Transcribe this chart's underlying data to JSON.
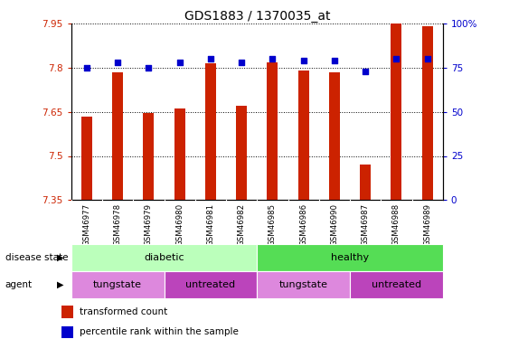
{
  "title": "GDS1883 / 1370035_at",
  "samples": [
    "GSM46977",
    "GSM46978",
    "GSM46979",
    "GSM46980",
    "GSM46981",
    "GSM46982",
    "GSM46985",
    "GSM46986",
    "GSM46990",
    "GSM46987",
    "GSM46988",
    "GSM46989"
  ],
  "bar_values": [
    7.635,
    7.785,
    7.645,
    7.66,
    7.815,
    7.67,
    7.818,
    7.79,
    7.785,
    7.47,
    7.95,
    7.94
  ],
  "dot_values": [
    75,
    78,
    75,
    78,
    80,
    78,
    80,
    79,
    79,
    73,
    80,
    80
  ],
  "ylim_left": [
    7.35,
    7.95
  ],
  "ylim_right": [
    0,
    100
  ],
  "yticks_left": [
    7.35,
    7.5,
    7.65,
    7.8,
    7.95
  ],
  "yticks_right": [
    0,
    25,
    50,
    75,
    100
  ],
  "ytick_labels_left": [
    "7.35",
    "7.5",
    "7.65",
    "7.8",
    "7.95"
  ],
  "ytick_labels_right": [
    "0",
    "25",
    "50",
    "75",
    "100%"
  ],
  "bar_color": "#CC2200",
  "dot_color": "#0000CC",
  "disease_state_labels": [
    {
      "label": "diabetic",
      "start": 0,
      "end": 6,
      "color": "#BBFFBB"
    },
    {
      "label": "healthy",
      "start": 6,
      "end": 12,
      "color": "#55DD55"
    }
  ],
  "agent_labels": [
    {
      "label": "tungstate",
      "start": 0,
      "end": 3,
      "color": "#DD88DD"
    },
    {
      "label": "untreated",
      "start": 3,
      "end": 6,
      "color": "#BB44BB"
    },
    {
      "label": "tungstate",
      "start": 6,
      "end": 9,
      "color": "#DD88DD"
    },
    {
      "label": "untreated",
      "start": 9,
      "end": 12,
      "color": "#BB44BB"
    }
  ],
  "left_label_color": "#CC2200",
  "right_label_color": "#0000CC",
  "tick_label_bg": "#CCCCCC",
  "fig_width": 5.63,
  "fig_height": 3.75,
  "dpi": 100
}
